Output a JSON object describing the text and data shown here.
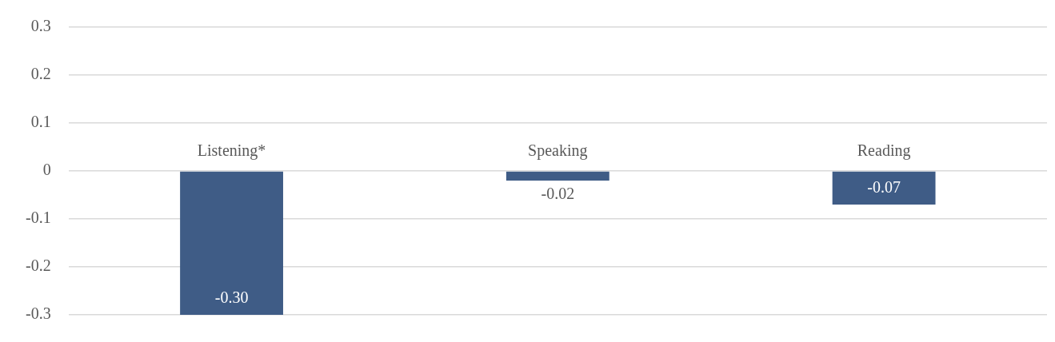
{
  "chart_data": {
    "type": "bar",
    "categories": [
      "Listening*",
      "Speaking",
      "Reading"
    ],
    "values": [
      -0.3,
      -0.02,
      -0.07
    ],
    "color": "#3f5c86",
    "ylim": [
      -0.3,
      0.3
    ],
    "yticks": [
      -0.3,
      -0.2,
      -0.1,
      0,
      0.1,
      0.2,
      0.3
    ],
    "grid": "y",
    "legend": false,
    "value_labels": [
      "-0.30",
      "-0.02",
      "-0.07"
    ]
  }
}
